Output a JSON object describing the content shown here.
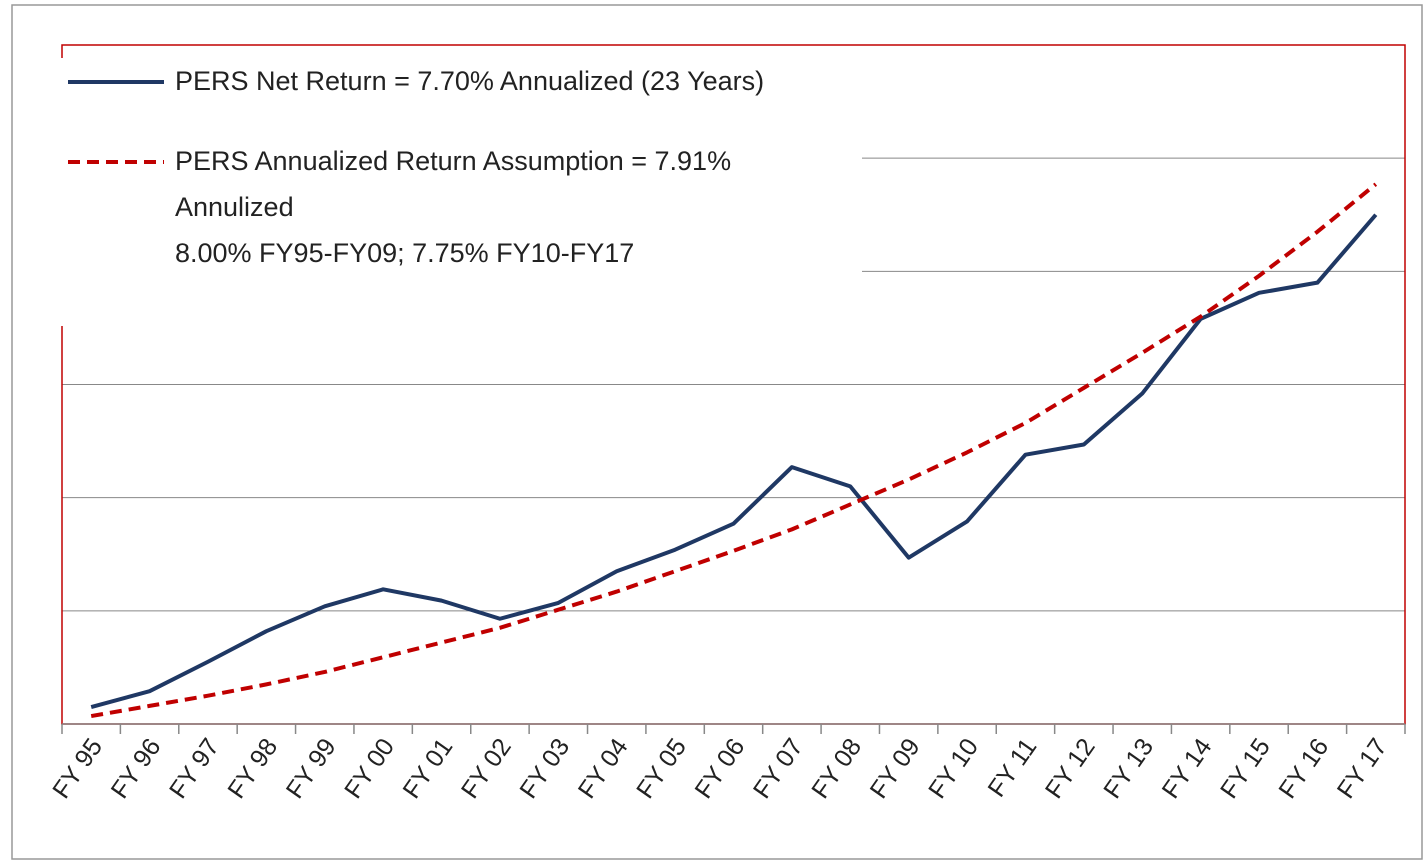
{
  "chart_data": {
    "type": "line",
    "categories": [
      "FY 95",
      "FY 96",
      "FY 97",
      "FY 98",
      "FY 99",
      "FY 00",
      "FY 01",
      "FY 02",
      "FY 03",
      "FY 04",
      "FY 05",
      "FY 06",
      "FY 07",
      "FY 08",
      "FY 09",
      "FY 10",
      "FY 11",
      "FY 12",
      "FY 13",
      "FY 14",
      "FY 15",
      "FY 16",
      "FY 17"
    ],
    "series": [
      {
        "name": "PERS Net Return = 7.70% Annualized (23 Years)",
        "color": "#1f3864",
        "dashed": false,
        "values": [
          0.15,
          0.29,
          0.55,
          0.82,
          1.04,
          1.19,
          1.09,
          0.93,
          1.07,
          1.35,
          1.54,
          1.77,
          2.27,
          2.1,
          1.47,
          1.79,
          2.38,
          2.47,
          2.92,
          3.58,
          3.81,
          3.9,
          4.5
        ]
      },
      {
        "name": "PERS Annualized Return Assumption = 7.91% Annulized\n8.00% FY95-FY09; 7.75% FY10-FY17",
        "color": "#c00000",
        "dashed": true,
        "values": [
          0.07,
          0.16,
          0.25,
          0.35,
          0.46,
          0.59,
          0.72,
          0.85,
          1.01,
          1.17,
          1.35,
          1.53,
          1.72,
          1.94,
          2.16,
          2.4,
          2.66,
          2.97,
          3.28,
          3.6,
          3.96,
          4.35,
          4.77
        ]
      }
    ],
    "ylim": [
      0,
      6
    ],
    "yticks": [
      1,
      2,
      3,
      4,
      5
    ],
    "grid": true
  }
}
